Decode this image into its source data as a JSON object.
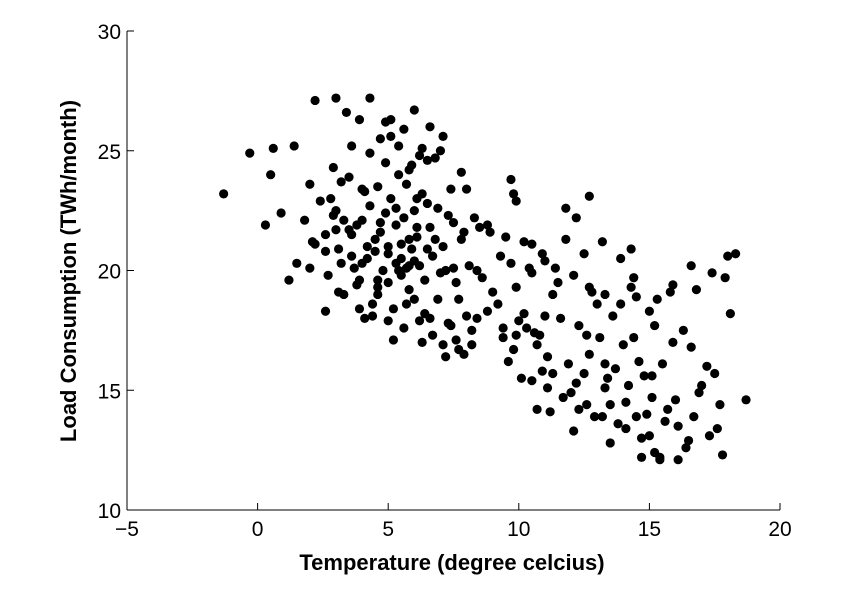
{
  "chart_data": {
    "type": "scatter",
    "title": "",
    "xlabel": "Temperature (degree celcius)",
    "ylabel": "Load Consumption (TWh/month)",
    "xlim": [
      -5,
      20
    ],
    "ylim": [
      10,
      30
    ],
    "xticks": [
      -5,
      0,
      5,
      10,
      15,
      20
    ],
    "yticks": [
      10,
      15,
      20,
      25,
      30
    ],
    "xtick_labels": [
      "−5",
      "0",
      "5",
      "10",
      "15",
      "20"
    ],
    "ytick_labels": [
      "10",
      "15",
      "20",
      "25",
      "30"
    ],
    "grid": false,
    "marker_color": "#000000",
    "points": [
      [
        -1.3,
        23.2
      ],
      [
        -0.3,
        24.9
      ],
      [
        0.3,
        21.9
      ],
      [
        0.5,
        24.0
      ],
      [
        0.6,
        25.1
      ],
      [
        0.9,
        22.4
      ],
      [
        1.4,
        25.2
      ],
      [
        1.5,
        20.3
      ],
      [
        1.8,
        22.1
      ],
      [
        2.0,
        23.6
      ],
      [
        2.1,
        21.2
      ],
      [
        2.2,
        27.1
      ],
      [
        2.4,
        22.9
      ],
      [
        2.6,
        18.3
      ],
      [
        2.6,
        21.5
      ],
      [
        2.7,
        19.8
      ],
      [
        2.9,
        24.3
      ],
      [
        2.9,
        22.3
      ],
      [
        3.0,
        27.2
      ],
      [
        3.1,
        20.9
      ],
      [
        3.2,
        23.7
      ],
      [
        3.3,
        19.0
      ],
      [
        3.3,
        22.1
      ],
      [
        3.4,
        26.6
      ],
      [
        3.5,
        21.7
      ],
      [
        3.6,
        25.2
      ],
      [
        3.7,
        20.1
      ],
      [
        3.8,
        21.9
      ],
      [
        3.9,
        19.6
      ],
      [
        4.0,
        23.4
      ],
      [
        4.0,
        22.1
      ],
      [
        4.1,
        18.0
      ],
      [
        4.2,
        20.5
      ],
      [
        4.3,
        22.7
      ],
      [
        4.3,
        24.9
      ],
      [
        4.3,
        27.2
      ],
      [
        4.4,
        18.1
      ],
      [
        4.5,
        21.3
      ],
      [
        4.5,
        20.8
      ],
      [
        4.6,
        23.5
      ],
      [
        4.6,
        19.3
      ],
      [
        4.7,
        25.5
      ],
      [
        4.7,
        22.0
      ],
      [
        4.8,
        20.0
      ],
      [
        4.9,
        26.2
      ],
      [
        4.9,
        24.5
      ],
      [
        5.0,
        21.0
      ],
      [
        5.0,
        19.5
      ],
      [
        5.1,
        23.0
      ],
      [
        5.1,
        26.3
      ],
      [
        5.2,
        17.1
      ],
      [
        5.3,
        20.3
      ],
      [
        5.3,
        21.9
      ],
      [
        5.4,
        25.2
      ],
      [
        5.4,
        24.0
      ],
      [
        5.5,
        19.8
      ],
      [
        5.5,
        20.5
      ],
      [
        5.6,
        25.9
      ],
      [
        5.6,
        22.2
      ],
      [
        5.7,
        20.1
      ],
      [
        5.7,
        23.6
      ],
      [
        5.8,
        21.3
      ],
      [
        5.8,
        19.2
      ],
      [
        5.9,
        24.4
      ],
      [
        5.9,
        20.9
      ],
      [
        6.0,
        20.4
      ],
      [
        6.0,
        18.8
      ],
      [
        6.1,
        23.0
      ],
      [
        6.1,
        21.8
      ],
      [
        6.2,
        24.8
      ],
      [
        6.2,
        20.2
      ],
      [
        6.3,
        17.0
      ],
      [
        6.3,
        25.1
      ],
      [
        6.4,
        19.6
      ],
      [
        6.5,
        22.8
      ],
      [
        6.5,
        24.6
      ],
      [
        6.6,
        18.0
      ],
      [
        6.7,
        20.6
      ],
      [
        6.8,
        24.7
      ],
      [
        6.9,
        22.6
      ],
      [
        7.0,
        25.0
      ],
      [
        7.0,
        19.9
      ],
      [
        7.1,
        21.0
      ],
      [
        7.2,
        16.4
      ],
      [
        7.3,
        17.8
      ],
      [
        7.4,
        23.4
      ],
      [
        7.5,
        20.1
      ],
      [
        7.5,
        22.0
      ],
      [
        7.6,
        17.1
      ],
      [
        7.7,
        18.8
      ],
      [
        7.8,
        21.3
      ],
      [
        7.9,
        16.5
      ],
      [
        8.0,
        23.4
      ],
      [
        8.2,
        16.9
      ],
      [
        8.5,
        21.8
      ],
      [
        8.8,
        21.9
      ],
      [
        9.3,
        20.6
      ],
      [
        9.7,
        23.8
      ],
      [
        9.8,
        23.2
      ],
      [
        9.9,
        22.9
      ],
      [
        10.0,
        17.9
      ],
      [
        10.2,
        18.2
      ],
      [
        10.4,
        20.1
      ],
      [
        10.5,
        19.9
      ],
      [
        10.6,
        17.4
      ],
      [
        10.7,
        16.9
      ],
      [
        10.9,
        15.8
      ],
      [
        11.0,
        18.1
      ],
      [
        11.1,
        16.4
      ],
      [
        11.2,
        14.1
      ],
      [
        11.5,
        19.5
      ],
      [
        11.6,
        18.0
      ],
      [
        11.8,
        22.6
      ],
      [
        12.0,
        14.9
      ],
      [
        12.1,
        13.3
      ],
      [
        12.3,
        17.7
      ],
      [
        12.5,
        15.7
      ],
      [
        12.6,
        14.4
      ],
      [
        12.8,
        19.1
      ],
      [
        13.0,
        18.6
      ],
      [
        13.1,
        17.2
      ],
      [
        13.3,
        16.1
      ],
      [
        13.4,
        15.5
      ],
      [
        13.5,
        14.4
      ],
      [
        13.6,
        18.1
      ],
      [
        13.8,
        13.6
      ],
      [
        14.0,
        16.9
      ],
      [
        14.2,
        15.2
      ],
      [
        14.3,
        19.3
      ],
      [
        14.5,
        13.9
      ],
      [
        14.6,
        16.2
      ],
      [
        14.7,
        12.2
      ],
      [
        14.8,
        15.6
      ],
      [
        15.0,
        13.1
      ],
      [
        15.1,
        14.7
      ],
      [
        15.3,
        18.8
      ],
      [
        15.4,
        12.2
      ],
      [
        15.5,
        16.1
      ],
      [
        15.7,
        14.2
      ],
      [
        15.9,
        19.4
      ],
      [
        16.1,
        13.5
      ],
      [
        16.3,
        17.5
      ],
      [
        16.5,
        12.9
      ],
      [
        16.8,
        19.2
      ],
      [
        17.0,
        15.2
      ],
      [
        17.3,
        13.1
      ],
      [
        17.6,
        13.4
      ],
      [
        17.8,
        12.3
      ],
      [
        18.1,
        18.2
      ],
      [
        18.3,
        20.7
      ],
      [
        18.7,
        14.6
      ],
      [
        2.2,
        21.1
      ],
      [
        3.0,
        21.7
      ],
      [
        3.6,
        20.6
      ],
      [
        4.0,
        20.3
      ],
      [
        4.6,
        19.6
      ],
      [
        5.0,
        20.7
      ],
      [
        5.4,
        20.0
      ],
      [
        5.8,
        20.2
      ],
      [
        6.1,
        21.4
      ],
      [
        6.5,
        20.9
      ],
      [
        6.8,
        21.3
      ],
      [
        7.2,
        20.0
      ],
      [
        7.6,
        19.5
      ],
      [
        8.1,
        20.2
      ],
      [
        8.4,
        18.0
      ],
      [
        9.0,
        19.1
      ],
      [
        9.4,
        17.2
      ],
      [
        9.6,
        16.2
      ],
      [
        9.8,
        16.7
      ],
      [
        10.1,
        15.5
      ],
      [
        10.3,
        17.6
      ],
      [
        10.8,
        17.3
      ],
      [
        11.3,
        19.0
      ],
      [
        11.9,
        16.1
      ],
      [
        12.2,
        15.3
      ],
      [
        12.7,
        16.5
      ],
      [
        13.2,
        13.9
      ],
      [
        13.7,
        15.9
      ],
      [
        14.1,
        14.5
      ],
      [
        14.4,
        17.2
      ],
      [
        14.9,
        14.0
      ],
      [
        15.2,
        12.4
      ],
      [
        15.6,
        13.7
      ],
      [
        16.0,
        14.6
      ],
      [
        16.4,
        12.6
      ],
      [
        16.9,
        14.9
      ],
      [
        17.5,
        15.7
      ],
      [
        17.9,
        19.7
      ],
      [
        15.8,
        19.1
      ],
      [
        15.0,
        18.3
      ],
      [
        14.4,
        19.7
      ],
      [
        13.9,
        20.5
      ],
      [
        13.2,
        21.2
      ],
      [
        12.5,
        20.7
      ],
      [
        11.8,
        21.3
      ],
      [
        11.0,
        20.4
      ],
      [
        10.5,
        21.1
      ],
      [
        9.9,
        19.3
      ],
      [
        9.2,
        18.6
      ],
      [
        8.6,
        19.7
      ],
      [
        8.0,
        18.1
      ],
      [
        7.4,
        17.7
      ],
      [
        6.9,
        18.8
      ],
      [
        6.4,
        18.2
      ],
      [
        5.7,
        18.6
      ],
      [
        5.2,
        18.4
      ],
      [
        4.6,
        19.0
      ],
      [
        3.9,
        18.4
      ],
      [
        3.1,
        19.1
      ],
      [
        2.8,
        23.0
      ],
      [
        3.5,
        23.9
      ],
      [
        4.1,
        23.3
      ],
      [
        4.9,
        22.4
      ],
      [
        5.5,
        21.1
      ],
      [
        6.0,
        22.5
      ],
      [
        6.6,
        21.8
      ],
      [
        7.3,
        22.3
      ],
      [
        7.8,
        24.1
      ],
      [
        8.3,
        22.2
      ],
      [
        8.9,
        21.6
      ],
      [
        9.5,
        21.4
      ],
      [
        10.2,
        21.2
      ],
      [
        10.9,
        20.7
      ],
      [
        11.4,
        20.1
      ],
      [
        12.1,
        19.8
      ],
      [
        12.7,
        19.3
      ],
      [
        13.3,
        19.0
      ],
      [
        13.9,
        18.6
      ],
      [
        14.5,
        18.9
      ],
      [
        15.2,
        17.7
      ],
      [
        15.9,
        17.0
      ],
      [
        16.6,
        16.8
      ],
      [
        17.2,
        16.0
      ],
      [
        17.7,
        14.4
      ],
      [
        16.7,
        13.9
      ],
      [
        16.1,
        12.1
      ],
      [
        15.4,
        12.1
      ],
      [
        14.7,
        13.0
      ],
      [
        14.1,
        13.4
      ],
      [
        13.5,
        12.8
      ],
      [
        12.9,
        13.9
      ],
      [
        12.3,
        14.2
      ],
      [
        11.7,
        14.7
      ],
      [
        11.1,
        15.1
      ],
      [
        10.5,
        15.4
      ],
      [
        9.9,
        17.3
      ],
      [
        9.4,
        17.6
      ],
      [
        8.8,
        18.3
      ],
      [
        8.2,
        17.5
      ],
      [
        7.7,
        16.7
      ],
      [
        7.1,
        16.9
      ],
      [
        6.7,
        17.3
      ],
      [
        6.2,
        17.9
      ],
      [
        5.6,
        17.6
      ],
      [
        5.0,
        17.9
      ],
      [
        4.4,
        18.6
      ],
      [
        3.8,
        19.4
      ],
      [
        3.2,
        20.3
      ],
      [
        2.6,
        20.8
      ],
      [
        2.0,
        20.1
      ],
      [
        1.2,
        19.6
      ],
      [
        6.3,
        23.2
      ],
      [
        5.8,
        24.2
      ],
      [
        5.3,
        22.6
      ],
      [
        4.7,
        21.6
      ],
      [
        4.2,
        21.0
      ],
      [
        3.6,
        21.5
      ],
      [
        3.0,
        22.5
      ],
      [
        3.9,
        26.3
      ],
      [
        5.1,
        25.6
      ],
      [
        6.6,
        26.0
      ],
      [
        7.1,
        25.6
      ],
      [
        6.0,
        26.7
      ],
      [
        12.7,
        23.1
      ],
      [
        12.2,
        22.2
      ],
      [
        14.3,
        20.9
      ],
      [
        16.6,
        20.2
      ],
      [
        17.4,
        19.9
      ],
      [
        18.0,
        20.6
      ],
      [
        15.1,
        15.6
      ],
      [
        13.3,
        15.1
      ],
      [
        12.6,
        17.3
      ],
      [
        10.7,
        14.2
      ],
      [
        11.3,
        15.7
      ],
      [
        9.7,
        20.3
      ],
      [
        8.4,
        20.0
      ],
      [
        7.9,
        21.6
      ]
    ]
  }
}
